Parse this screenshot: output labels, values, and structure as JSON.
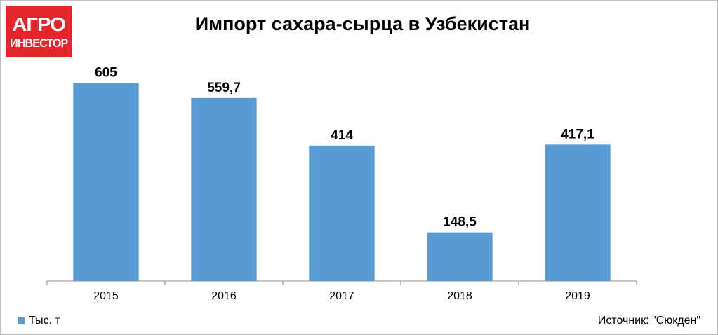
{
  "logo": {
    "line1": "АГРО",
    "line2": "ИНВЕСТОР",
    "bg_color": "#e3262c"
  },
  "source": "Источник: \"Сюкден\"",
  "chart_data": {
    "type": "bar",
    "title": "Импорт сахара-сырца в Узбекистан",
    "categories": [
      "2015",
      "2016",
      "2017",
      "2018",
      "2019"
    ],
    "series": [
      {
        "name": "Тыс. т",
        "values": [
          605,
          559.7,
          414,
          148.5,
          417.1
        ],
        "labels": [
          "605",
          "559,7",
          "414",
          "148,5",
          "417,1"
        ],
        "color": "#5b9bd5"
      }
    ],
    "ylim": [
      0,
      680
    ],
    "grid": false,
    "legend": "bottom-left"
  }
}
